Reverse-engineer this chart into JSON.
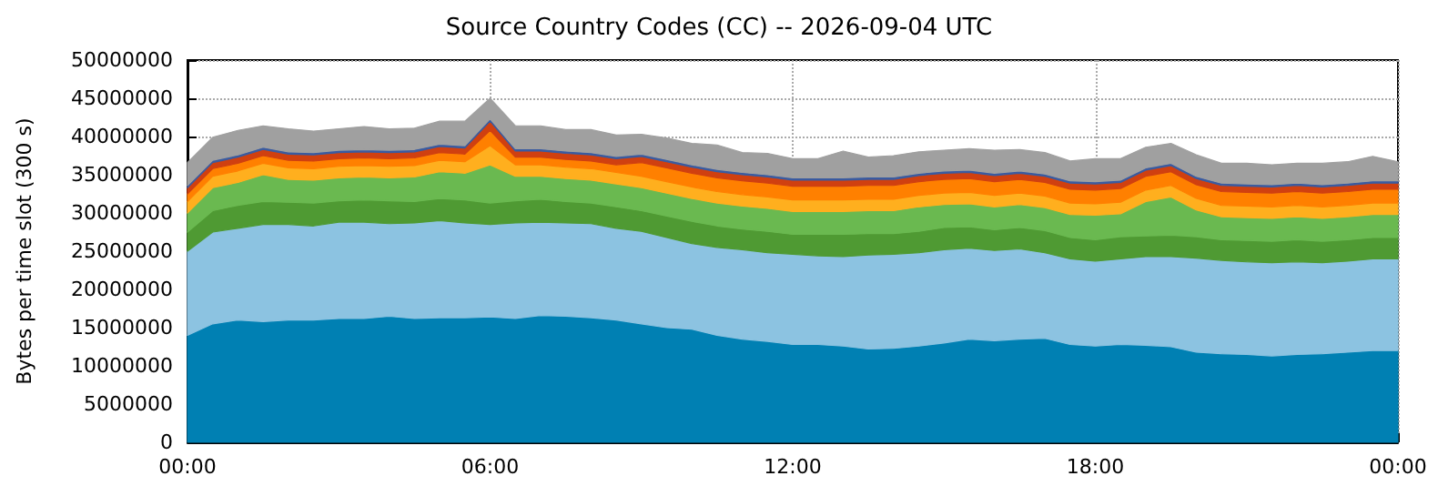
{
  "chart_data": {
    "type": "area",
    "stacked": true,
    "title": "Source Country Codes (CC) -- 2026-09-04 UTC",
    "ylabel": "Bytes per time slot (300 s)",
    "x": [
      0,
      0.5,
      1,
      1.5,
      2,
      2.5,
      3,
      3.5,
      4,
      4.5,
      5,
      5.5,
      6,
      6.5,
      7,
      7.5,
      8,
      8.5,
      9,
      9.5,
      10,
      10.5,
      11,
      11.5,
      12,
      12.5,
      13,
      13.5,
      14,
      14.5,
      15,
      15.5,
      16,
      16.5,
      17,
      17.5,
      18,
      18.5,
      19,
      19.5,
      20,
      20.5,
      21,
      21.5,
      22,
      22.5,
      23,
      23.5,
      24
    ],
    "xlim": [
      0,
      24
    ],
    "xticks": [
      {
        "value": 0,
        "label": "00:00"
      },
      {
        "value": 6,
        "label": "06:00"
      },
      {
        "value": 12,
        "label": "12:00"
      },
      {
        "value": 18,
        "label": "18:00"
      },
      {
        "value": 24,
        "label": "00:00"
      }
    ],
    "ylim": [
      0,
      50000000
    ],
    "yticks": [
      0,
      5000000,
      10000000,
      15000000,
      20000000,
      25000000,
      30000000,
      35000000,
      40000000,
      45000000,
      50000000
    ],
    "grid": true,
    "series": [
      {
        "color": "#0080b3",
        "values": [
          14000000,
          15500000,
          16000000,
          15800000,
          16000000,
          16000000,
          16200000,
          16200000,
          16500000,
          16200000,
          16300000,
          16300000,
          16400000,
          16200000,
          16600000,
          16500000,
          16300000,
          16000000,
          15500000,
          15000000,
          14800000,
          14000000,
          13500000,
          13200000,
          12800000,
          12800000,
          12600000,
          12200000,
          12300000,
          12600000,
          13000000,
          13500000,
          13300000,
          13500000,
          13600000,
          12800000,
          12600000,
          12800000,
          12700000,
          12500000,
          11800000,
          11600000,
          11500000,
          11300000,
          11500000,
          11600000,
          11800000,
          12000000,
          12000000
        ]
      },
      {
        "color": "#8cc3e1",
        "values": [
          11000000,
          12000000,
          12000000,
          12700000,
          12500000,
          12300000,
          12600000,
          12600000,
          12100000,
          12500000,
          12700000,
          12400000,
          12100000,
          12500000,
          12200000,
          12200000,
          12300000,
          12000000,
          12100000,
          11800000,
          11200000,
          11500000,
          11700000,
          11600000,
          11800000,
          11600000,
          11700000,
          12300000,
          12300000,
          12200000,
          12200000,
          11900000,
          11800000,
          11800000,
          11200000,
          11200000,
          11100000,
          11200000,
          11600000,
          11800000,
          12300000,
          12200000,
          12100000,
          12200000,
          12100000,
          11900000,
          11900000,
          12000000,
          12000000
        ]
      },
      {
        "color": "#4f9a33",
        "values": [
          2500000,
          2800000,
          3000000,
          3000000,
          2900000,
          3000000,
          2800000,
          2900000,
          3000000,
          2800000,
          2900000,
          3000000,
          2800000,
          2900000,
          3000000,
          2800000,
          2700000,
          2800000,
          2700000,
          2800000,
          2900000,
          2800000,
          2700000,
          2800000,
          2600000,
          2800000,
          2900000,
          2800000,
          2700000,
          2800000,
          2900000,
          2800000,
          2700000,
          2800000,
          2900000,
          2800000,
          2800000,
          2900000,
          2700000,
          2800000,
          2800000,
          2700000,
          2800000,
          2800000,
          2900000,
          2800000,
          2800000,
          2800000,
          2800000
        ]
      },
      {
        "color": "#6ab950",
        "values": [
          2500000,
          3000000,
          3000000,
          3500000,
          3000000,
          3000000,
          3000000,
          3000000,
          3000000,
          3200000,
          3500000,
          3500000,
          5000000,
          3200000,
          3000000,
          3000000,
          3000000,
          3000000,
          3000000,
          3000000,
          3000000,
          3000000,
          3000000,
          3000000,
          3000000,
          3000000,
          3000000,
          3000000,
          3000000,
          3200000,
          3000000,
          3000000,
          3000000,
          3000000,
          3000000,
          3000000,
          3200000,
          3000000,
          4500000,
          5000000,
          3500000,
          3000000,
          3000000,
          3000000,
          3000000,
          3000000,
          3000000,
          3000000,
          3000000
        ]
      },
      {
        "color": "#ffaf1e",
        "values": [
          1500000,
          1500000,
          1500000,
          1500000,
          1500000,
          1500000,
          1500000,
          1500000,
          1500000,
          1500000,
          1500000,
          1500000,
          2500000,
          1500000,
          1500000,
          1500000,
          1500000,
          1500000,
          1500000,
          1500000,
          1500000,
          1500000,
          1500000,
          1500000,
          1500000,
          1500000,
          1500000,
          1500000,
          1500000,
          1500000,
          1500000,
          1500000,
          1500000,
          1500000,
          1500000,
          1500000,
          1500000,
          1500000,
          1500000,
          1500000,
          1500000,
          1500000,
          1500000,
          1500000,
          1500000,
          1500000,
          1500000,
          1500000,
          1500000
        ]
      },
      {
        "color": "#ff8000",
        "values": [
          1000000,
          1000000,
          1000000,
          1000000,
          1000000,
          1000000,
          1000000,
          1000000,
          1000000,
          1000000,
          1000000,
          1000000,
          2000000,
          1000000,
          1000000,
          1000000,
          1000000,
          1000000,
          1800000,
          1800000,
          1800000,
          1800000,
          1800000,
          1800000,
          1800000,
          1800000,
          1800000,
          1800000,
          1800000,
          1800000,
          1800000,
          1800000,
          1800000,
          1800000,
          1800000,
          1800000,
          1800000,
          1800000,
          1800000,
          1800000,
          1800000,
          1800000,
          1800000,
          1800000,
          1800000,
          1800000,
          1800000,
          1800000,
          1800000
        ]
      },
      {
        "color": "#d04010",
        "values": [
          800000,
          800000,
          800000,
          800000,
          800000,
          800000,
          800000,
          800000,
          800000,
          800000,
          800000,
          800000,
          1200000,
          800000,
          800000,
          800000,
          800000,
          800000,
          800000,
          800000,
          800000,
          800000,
          800000,
          800000,
          800000,
          800000,
          800000,
          800000,
          800000,
          800000,
          800000,
          800000,
          800000,
          800000,
          800000,
          800000,
          800000,
          800000,
          800000,
          800000,
          800000,
          800000,
          800000,
          800000,
          800000,
          800000,
          800000,
          800000,
          800000
        ]
      },
      {
        "color": "#3a5ba0",
        "values": [
          300000,
          300000,
          300000,
          300000,
          300000,
          300000,
          300000,
          300000,
          300000,
          300000,
          300000,
          300000,
          300000,
          300000,
          300000,
          300000,
          300000,
          300000,
          300000,
          300000,
          300000,
          300000,
          300000,
          300000,
          300000,
          300000,
          300000,
          300000,
          300000,
          300000,
          300000,
          300000,
          300000,
          300000,
          300000,
          300000,
          300000,
          300000,
          300000,
          300000,
          300000,
          300000,
          300000,
          300000,
          300000,
          300000,
          300000,
          300000,
          300000
        ]
      },
      {
        "color": "#a0a0a0",
        "values": [
          3000000,
          3000000,
          3200000,
          2800000,
          3000000,
          2800000,
          2800000,
          3000000,
          2800000,
          2800000,
          3000000,
          3200000,
          2700000,
          3000000,
          3000000,
          2800000,
          3000000,
          2800000,
          2600000,
          2800000,
          2800000,
          3200000,
          2600000,
          2800000,
          2500000,
          2500000,
          3500000,
          2600000,
          2800000,
          2800000,
          2700000,
          2800000,
          3000000,
          2800000,
          2800000,
          2600000,
          3000000,
          2800000,
          2700000,
          2600000,
          2800000,
          2600000,
          2700000,
          2600000,
          2600000,
          2800000,
          2800000,
          3200000,
          2500000
        ]
      }
    ]
  }
}
